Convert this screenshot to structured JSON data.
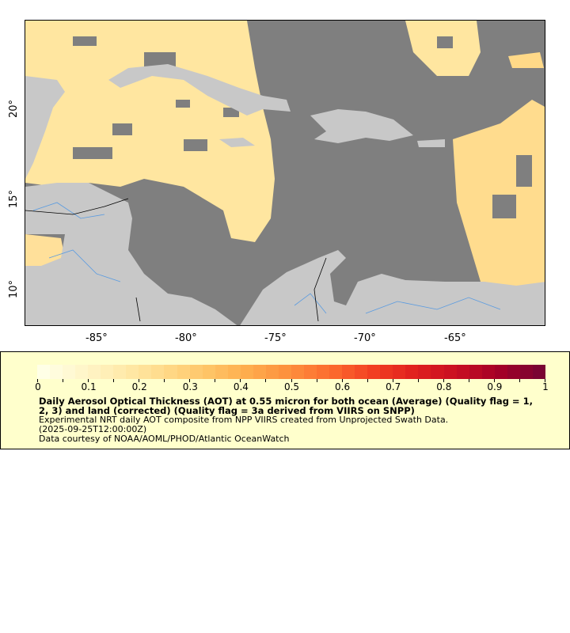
{
  "map": {
    "lon_ticks": [
      "-85°",
      "-80°",
      "-75°",
      "-70°",
      "-65°"
    ],
    "lat_ticks": [
      "20°",
      "15°",
      "10°"
    ],
    "colors": {
      "ocean_nodata": "#7f7f7f",
      "land": "#c8c8c8",
      "rivers": "#5a9be0",
      "borders": "#777777"
    }
  },
  "legend": {
    "colorbar": {
      "min": 0,
      "max": 1,
      "colors": [
        "#ffffe6",
        "#fff5c8",
        "#ffe9a8",
        "#ffd987",
        "#fec466",
        "#feab4b",
        "#fd8d3c",
        "#fc6a2e",
        "#f23f22",
        "#e0201e",
        "#c80e22",
        "#a50026",
        "#7a0432"
      ]
    },
    "tick_labels": [
      "0",
      "0.1",
      "0.2",
      "0.3",
      "0.4",
      "0.5",
      "0.6",
      "0.7",
      "0.8",
      "0.9",
      "1"
    ],
    "title": "Daily Aerosol Optical Thickness (AOT) at 0.55 micron for both ocean (Average) (Quality flag = 1, 2, 3) and land (corrected) (Quality flag = 3a derived from VIIRS on SNPP)",
    "line1": "Experimental NRT daily AOT composite from NPP VIIRS created from Unprojected Swath Data.",
    "line2": "(2025-09-25T12:00:00Z)",
    "line3": "Data courtesy of NOAA/AOML/PHOD/Atlantic OceanWatch"
  }
}
